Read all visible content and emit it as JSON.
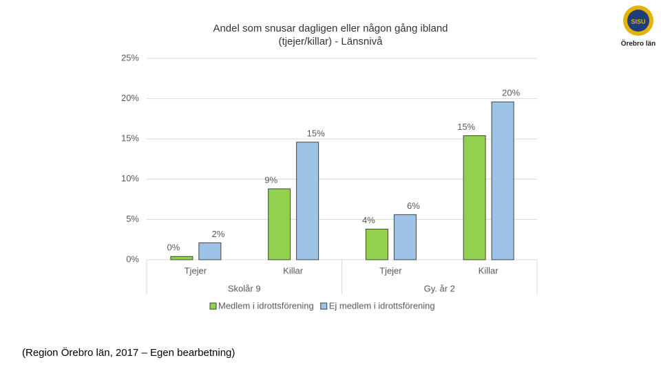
{
  "chart_data": {
    "type": "bar",
    "title": [
      "Andel som snusar dagligen eller någon gång ibland",
      "(tjejer/killar) - Länsnivå"
    ],
    "categories": [
      "Tjejer",
      "Killar",
      "Tjejer",
      "Killar"
    ],
    "category_groups": [
      "Skolår 9",
      "Gy. år 2"
    ],
    "series": [
      {
        "name": "Medlem i idrottsförening",
        "color": "#92d050",
        "values": [
          0.4,
          8.8,
          3.8,
          15.4
        ],
        "value_labels": [
          "0%",
          "9%",
          "4%",
          "15%"
        ]
      },
      {
        "name": "Ej medlem i idrottsförening",
        "color": "#9dc3e6",
        "values": [
          2.1,
          14.6,
          5.6,
          19.6
        ],
        "value_labels": [
          "2%",
          "15%",
          "6%",
          "20%"
        ]
      }
    ],
    "ylim": [
      0,
      25
    ],
    "yticks": [
      {
        "value": 0,
        "label": "0%"
      },
      {
        "value": 5,
        "label": "5%"
      },
      {
        "value": 10,
        "label": "10%"
      },
      {
        "value": 15,
        "label": "15%"
      },
      {
        "value": 20,
        "label": "20%"
      },
      {
        "value": 25,
        "label": "25%"
      }
    ],
    "grid": true,
    "legend": "bottom"
  },
  "source": "(Region Örebro län, 2017 – Egen bearbetning)",
  "logo": {
    "emblem": "SISU",
    "text": "Örebro län"
  }
}
